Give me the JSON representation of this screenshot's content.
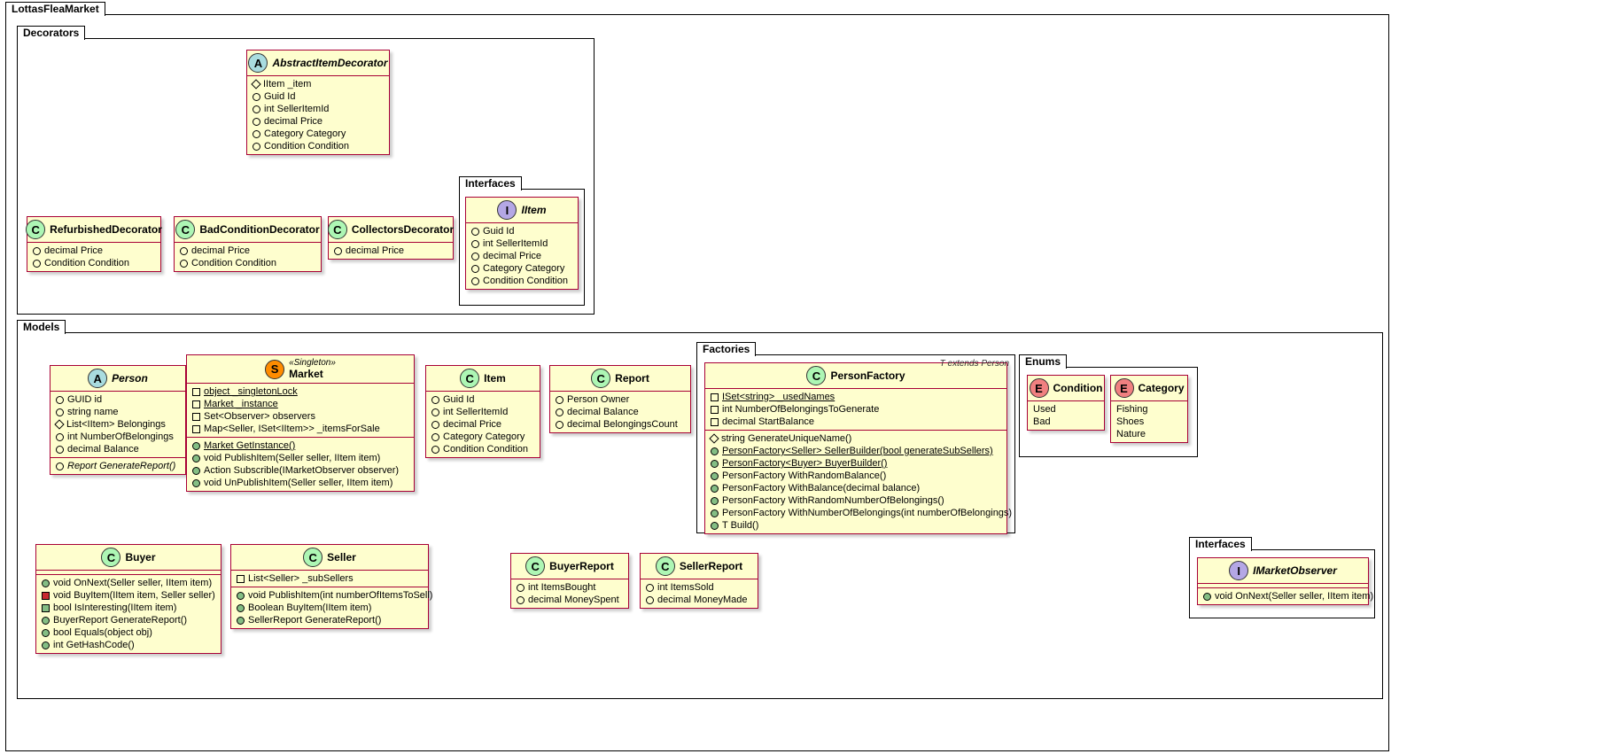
{
  "packages": {
    "root": "LottasFleaMarket",
    "decorators": "Decorators",
    "models": "Models",
    "interfaces1": "Interfaces",
    "factories": "Factories",
    "enums": "Enums",
    "interfaces2": "Interfaces"
  },
  "colors": {
    "classFill": "#fefece",
    "classBorder": "#a80036",
    "edge": "#a80036",
    "badgeA": "#a9dcdf",
    "badgeC": "#adf6b4",
    "badgeI": "#b4a7e5",
    "badgeS": "#ff8c00",
    "badgeE": "#f08080"
  },
  "classes": {
    "abstractItemDecorator": {
      "badge": "A",
      "title": "AbstractItemDecorator",
      "abstract": true,
      "members": [
        {
          "m": "diam yellow-o",
          "t": "IItem _item"
        },
        {
          "m": "circ green-o",
          "t": "Guid Id"
        },
        {
          "m": "circ green-o",
          "t": "int SellerItemId"
        },
        {
          "m": "circ green-o",
          "t": "decimal Price"
        },
        {
          "m": "circ green-o",
          "t": "Category Category"
        },
        {
          "m": "circ green-o",
          "t": "Condition Condition"
        }
      ]
    },
    "refurbished": {
      "badge": "C",
      "title": "RefurbishedDecorator",
      "members": [
        {
          "m": "circ green-o",
          "t": "decimal Price"
        },
        {
          "m": "circ green-o",
          "t": "Condition Condition"
        }
      ]
    },
    "badCondition": {
      "badge": "C",
      "title": "BadConditionDecorator",
      "members": [
        {
          "m": "circ green-o",
          "t": "decimal Price"
        },
        {
          "m": "circ green-o",
          "t": "Condition Condition"
        }
      ]
    },
    "collectors": {
      "badge": "C",
      "title": "CollectorsDecorator",
      "members": [
        {
          "m": "circ green-o",
          "t": "decimal Price"
        }
      ]
    },
    "iitem": {
      "badge": "I",
      "title": "IItem",
      "abstract": true,
      "members": [
        {
          "m": "circ green-o",
          "t": "Guid Id"
        },
        {
          "m": "circ green-o",
          "t": "int SellerItemId"
        },
        {
          "m": "circ green-o",
          "t": "decimal Price"
        },
        {
          "m": "circ green-o",
          "t": "Category Category"
        },
        {
          "m": "circ green-o",
          "t": "Condition Condition"
        }
      ]
    },
    "person": {
      "badge": "A",
      "title": "Person",
      "abstract": true,
      "members": [
        {
          "m": "circ green-o",
          "t": "GUID id"
        },
        {
          "m": "circ green-o",
          "t": "string name"
        },
        {
          "m": "diam yellow-o",
          "t": "List<IItem> Belongings"
        },
        {
          "m": "circ green-o",
          "t": "int NumberOfBelongings"
        },
        {
          "m": "circ green-o",
          "t": "decimal Balance"
        }
      ],
      "ops": [
        {
          "m": "circ green-o",
          "t": "Report GenerateReport()",
          "i": true
        }
      ]
    },
    "market": {
      "badge": "S",
      "stereo": "«Singleton»",
      "title": "Market",
      "members": [
        {
          "m": "sq red-o",
          "t": "object _singletonLock",
          "u": true
        },
        {
          "m": "sq red-o",
          "t": "Market _instance",
          "u": true
        },
        {
          "m": "sq red-o",
          "t": "Set<Observer> observers"
        },
        {
          "m": "sq red-o",
          "t": "Map<Seller, ISet<IItem>> _itemsForSale"
        }
      ],
      "ops": [
        {
          "m": "circ green-f",
          "t": "Market GetInstance()",
          "u": true
        },
        {
          "m": "circ green-f",
          "t": "void PublishItem(Seller seller, IItem item)"
        },
        {
          "m": "circ green-f",
          "t": "Action Subscrible(IMarketObserver observer)"
        },
        {
          "m": "circ green-f",
          "t": "void UnPublishItem(Seller seller, IItem item)"
        }
      ]
    },
    "item": {
      "badge": "C",
      "title": "Item",
      "members": [
        {
          "m": "circ green-o",
          "t": "Guid Id"
        },
        {
          "m": "circ green-o",
          "t": "int SellerItemId"
        },
        {
          "m": "circ green-o",
          "t": "decimal Price"
        },
        {
          "m": "circ green-o",
          "t": "Category Category"
        },
        {
          "m": "circ green-o",
          "t": "Condition Condition"
        }
      ]
    },
    "report": {
      "badge": "C",
      "title": "Report",
      "members": [
        {
          "m": "circ green-o",
          "t": "Person Owner"
        },
        {
          "m": "circ green-o",
          "t": "decimal Balance"
        },
        {
          "m": "circ green-o",
          "t": "decimal BelongingsCount"
        }
      ]
    },
    "personFactory": {
      "badge": "C",
      "title": "PersonFactory",
      "note": "T extends Person",
      "members": [
        {
          "m": "sq red-o",
          "t": "ISet<string> _usedNames",
          "u": true
        },
        {
          "m": "sq red-o",
          "t": "int NumberOfBelongingsToGenerate"
        },
        {
          "m": "sq red-o",
          "t": "decimal StartBalance"
        }
      ],
      "ops": [
        {
          "m": "diam yellow-o",
          "t": "string GenerateUniqueName()"
        },
        {
          "m": "circ green-f",
          "t": "PersonFactory<Seller> SellerBuilder(bool generateSubSellers)",
          "u": true
        },
        {
          "m": "circ green-f",
          "t": "PersonFactory<Buyer> BuyerBuilder()",
          "u": true
        },
        {
          "m": "circ green-f",
          "t": "PersonFactory WithRandomBalance()"
        },
        {
          "m": "circ green-f",
          "t": "PersonFactory WithBalance(decimal balance)"
        },
        {
          "m": "circ green-f",
          "t": "PersonFactory WithRandomNumberOfBelongings()"
        },
        {
          "m": "circ green-f",
          "t": "PersonFactory WithNumberOfBelongings(int numberOfBelongings)"
        },
        {
          "m": "circ green-f",
          "t": "T Build()"
        }
      ]
    },
    "condition": {
      "badge": "E",
      "title": "Condition",
      "members": [
        {
          "t": "Used"
        },
        {
          "t": "Bad"
        }
      ]
    },
    "category": {
      "badge": "E",
      "title": "Category",
      "members": [
        {
          "t": "Fishing"
        },
        {
          "t": "Shoes"
        },
        {
          "t": "Nature"
        }
      ]
    },
    "buyer": {
      "badge": "C",
      "title": "Buyer",
      "ops": [
        {
          "m": "circ green-f",
          "t": "void OnNext(Seller seller, IItem item)"
        },
        {
          "m": "sq red-f",
          "t": "void BuyItem(IItem item, Seller seller)"
        },
        {
          "m": "sq green-f",
          "t": "bool IsInteresting(IItem item)"
        },
        {
          "m": "circ green-f",
          "t": "BuyerReport GenerateReport()"
        },
        {
          "m": "circ green-f",
          "t": "bool Equals(object obj)"
        },
        {
          "m": "circ green-f",
          "t": "int GetHashCode()"
        }
      ]
    },
    "seller": {
      "badge": "C",
      "title": "Seller",
      "members": [
        {
          "m": "sq red-o",
          "t": "List<Seller> _subSellers"
        }
      ],
      "ops": [
        {
          "m": "circ green-f",
          "t": "void PublishItem(int numberOfItemsToSell)"
        },
        {
          "m": "circ green-f",
          "t": "Boolean BuyItem(IItem item)"
        },
        {
          "m": "circ green-f",
          "t": "SellerReport GenerateReport()"
        }
      ]
    },
    "buyerReport": {
      "badge": "C",
      "title": "BuyerReport",
      "members": [
        {
          "m": "circ green-o",
          "t": "int ItemsBought"
        },
        {
          "m": "circ green-o",
          "t": "decimal MoneySpent"
        }
      ]
    },
    "sellerReport": {
      "badge": "C",
      "title": "SellerReport",
      "members": [
        {
          "m": "circ green-o",
          "t": "int ItemsSold"
        },
        {
          "m": "circ green-o",
          "t": "decimal MoneyMade"
        }
      ]
    },
    "iMarketObserver": {
      "badge": "I",
      "title": "IMarketObserver",
      "abstract": true,
      "ops": [
        {
          "m": "circ green-f",
          "t": "void OnNext(Seller seller, IItem item)"
        }
      ]
    }
  }
}
